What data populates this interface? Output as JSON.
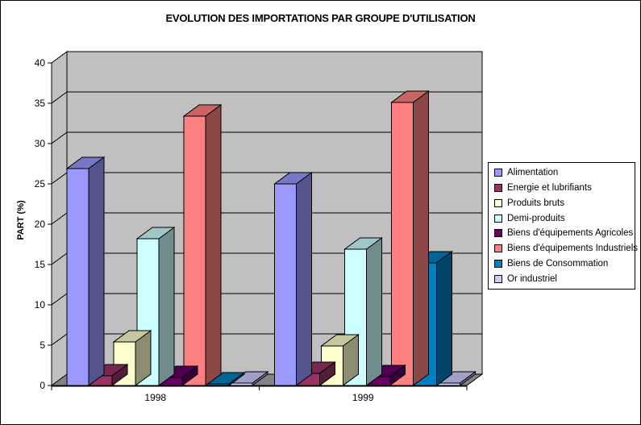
{
  "chart_data": {
    "type": "bar",
    "style": "excel-3d-clustered-column",
    "title": "EVOLUTION DES IMPORTATIONS PAR GROUPE D'UTILISATION",
    "xlabel": "",
    "ylabel": "PART (%)",
    "categories": [
      "1998",
      "1999"
    ],
    "series": [
      {
        "name": "Alimentation",
        "color": "#9999FF",
        "values": [
          26.9,
          25.0
        ]
      },
      {
        "name": "Energie et lubrifiants",
        "color": "#993366",
        "values": [
          1.2,
          1.5
        ]
      },
      {
        "name": "Produits bruts",
        "color": "#FFFFCC",
        "values": [
          5.4,
          4.9
        ]
      },
      {
        "name": "Demi-produits",
        "color": "#CCFFFF",
        "values": [
          18.2,
          16.9
        ]
      },
      {
        "name": "Biens d'équipements Agricoles",
        "color": "#660066",
        "values": [
          1.0,
          1.1
        ]
      },
      {
        "name": "Biens d'équipements Industriels",
        "color": "#FF8080",
        "values": [
          33.4,
          35.1
        ]
      },
      {
        "name": "Biens de Consommation",
        "color": "#0080C0",
        "values": [
          0.2,
          15.2
        ]
      },
      {
        "name": "Or industriel",
        "color": "#CCCCFF",
        "values": [
          0.3,
          0.3
        ]
      }
    ],
    "ylim": [
      0,
      40
    ],
    "ytick_step": 5,
    "grid": true,
    "legend_position": "right",
    "colors": {
      "wall": "#C0C0C0",
      "floor": "#848284",
      "gridline": "#000000",
      "axis": "#000000",
      "background": "#FFFFFF"
    }
  }
}
